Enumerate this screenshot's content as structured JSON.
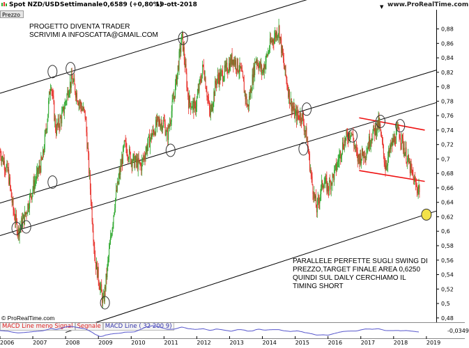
{
  "header": {
    "symbol": "Spot NZD/USD",
    "period": "Settimanale",
    "last": "0,6589 (+0,80%)",
    "date": "19-ott-2018",
    "brand": "www.ProRealTime.com"
  },
  "panel_label": "Prezzo",
  "annotations": {
    "top_left": [
      "PROGETTO DIVENTA TRADER",
      "SCRIVIMI A INFOSCATTA@GMAIL.COM"
    ],
    "bottom_right": [
      "PARALLELE PERFETTE SUGLI SWING DI",
      "PREZZO,TARGET FINALE AREA 0,6250",
      "QUINDI SUL DAILY CERCHIAMO IL",
      "TIMING SHORT"
    ],
    "copyright": "© ProRealTime.com"
  },
  "macd_legend": {
    "line1": "MACD Line meno Signal",
    "line2": "Segnale",
    "line3": "MACD Line ( 32 200 9)",
    "value": "-0,0349"
  },
  "colors": {
    "up": "#2ea82e",
    "down": "#e8302a",
    "channel": "#000000",
    "target_marker": "#f2e24a"
  },
  "chart_data": {
    "type": "candlestick",
    "x_ticks": [
      "2006",
      "2007",
      "2008",
      "2009",
      "2010",
      "2011",
      "2012",
      "2013",
      "2014",
      "2015",
      "2016",
      "2017",
      "2018",
      "2019"
    ],
    "y_ticks": [
      "0,48",
      "0,5",
      "0,52",
      "0,54",
      "0,56",
      "0,58",
      "0,6",
      "0,62",
      "0,64",
      "0,66",
      "0,68",
      "0,7",
      "0,72",
      "0,74",
      "0,76",
      "0,78",
      "0,8",
      "0,82",
      "0,84",
      "0,86",
      "0,88"
    ],
    "ylim": [
      0.475,
      0.895
    ],
    "xlim": [
      2006.0,
      2019.3
    ],
    "price_path": [
      [
        2006.0,
        0.71
      ],
      [
        2006.25,
        0.68
      ],
      [
        2006.4,
        0.63
      ],
      [
        2006.55,
        0.6
      ],
      [
        2006.75,
        0.62
      ],
      [
        2007.0,
        0.66
      ],
      [
        2007.3,
        0.7
      ],
      [
        2007.45,
        0.76
      ],
      [
        2007.55,
        0.81
      ],
      [
        2007.7,
        0.74
      ],
      [
        2007.9,
        0.76
      ],
      [
        2008.1,
        0.8
      ],
      [
        2008.2,
        0.81
      ],
      [
        2008.4,
        0.78
      ],
      [
        2008.6,
        0.76
      ],
      [
        2008.75,
        0.66
      ],
      [
        2008.9,
        0.56
      ],
      [
        2009.15,
        0.5
      ],
      [
        2009.3,
        0.56
      ],
      [
        2009.5,
        0.64
      ],
      [
        2009.8,
        0.72
      ],
      [
        2010.0,
        0.7
      ],
      [
        2010.3,
        0.69
      ],
      [
        2010.5,
        0.72
      ],
      [
        2010.8,
        0.75
      ],
      [
        2011.0,
        0.75
      ],
      [
        2011.1,
        0.73
      ],
      [
        2011.35,
        0.8
      ],
      [
        2011.55,
        0.87
      ],
      [
        2011.75,
        0.78
      ],
      [
        2011.95,
        0.77
      ],
      [
        2012.2,
        0.83
      ],
      [
        2012.4,
        0.76
      ],
      [
        2012.6,
        0.81
      ],
      [
        2012.85,
        0.82
      ],
      [
        2013.1,
        0.84
      ],
      [
        2013.35,
        0.82
      ],
      [
        2013.55,
        0.77
      ],
      [
        2013.8,
        0.84
      ],
      [
        2014.0,
        0.82
      ],
      [
        2014.25,
        0.86
      ],
      [
        2014.5,
        0.88
      ],
      [
        2014.65,
        0.83
      ],
      [
        2014.85,
        0.78
      ],
      [
        2015.0,
        0.76
      ],
      [
        2015.2,
        0.76
      ],
      [
        2015.35,
        0.73
      ],
      [
        2015.5,
        0.67
      ],
      [
        2015.65,
        0.63
      ],
      [
        2015.85,
        0.67
      ],
      [
        2016.0,
        0.66
      ],
      [
        2016.2,
        0.68
      ],
      [
        2016.45,
        0.72
      ],
      [
        2016.7,
        0.74
      ],
      [
        2016.9,
        0.7
      ],
      [
        2017.15,
        0.71
      ],
      [
        2017.3,
        0.73
      ],
      [
        2017.55,
        0.75
      ],
      [
        2017.75,
        0.69
      ],
      [
        2017.95,
        0.72
      ],
      [
        2018.05,
        0.73
      ],
      [
        2018.15,
        0.74
      ],
      [
        2018.35,
        0.71
      ],
      [
        2018.55,
        0.68
      ],
      [
        2018.7,
        0.66
      ],
      [
        2018.8,
        0.66
      ]
    ],
    "swing_circles": [
      [
        2006.5,
        0.604
      ],
      [
        2006.8,
        0.606
      ],
      [
        2007.6,
        0.668
      ],
      [
        2007.6,
        0.821
      ],
      [
        2008.15,
        0.825
      ],
      [
        2009.2,
        0.501
      ],
      [
        2011.2,
        0.712
      ],
      [
        2011.58,
        0.867
      ],
      [
        2015.35,
        0.769
      ],
      [
        2015.25,
        0.714
      ],
      [
        2016.75,
        0.732
      ],
      [
        2017.6,
        0.752
      ],
      [
        2018.2,
        0.746
      ]
    ],
    "target_marker": [
      2019.0,
      0.623
    ],
    "channel_lines": [
      [
        [
          2006.0,
          0.791
        ],
        [
          2019.3,
          0.975
        ]
      ],
      [
        [
          2006.0,
          0.639
        ],
        [
          2019.3,
          0.823
        ]
      ],
      [
        [
          2006.0,
          0.594
        ],
        [
          2019.3,
          0.778
        ]
      ],
      [
        [
          2008.0,
          0.46
        ],
        [
          2019.3,
          0.628
        ]
      ]
    ],
    "wedge_lines": [
      [
        [
          2016.95,
          0.757
        ],
        [
          2018.95,
          0.74
        ]
      ],
      [
        [
          2016.95,
          0.684
        ],
        [
          2018.95,
          0.669
        ]
      ]
    ]
  }
}
